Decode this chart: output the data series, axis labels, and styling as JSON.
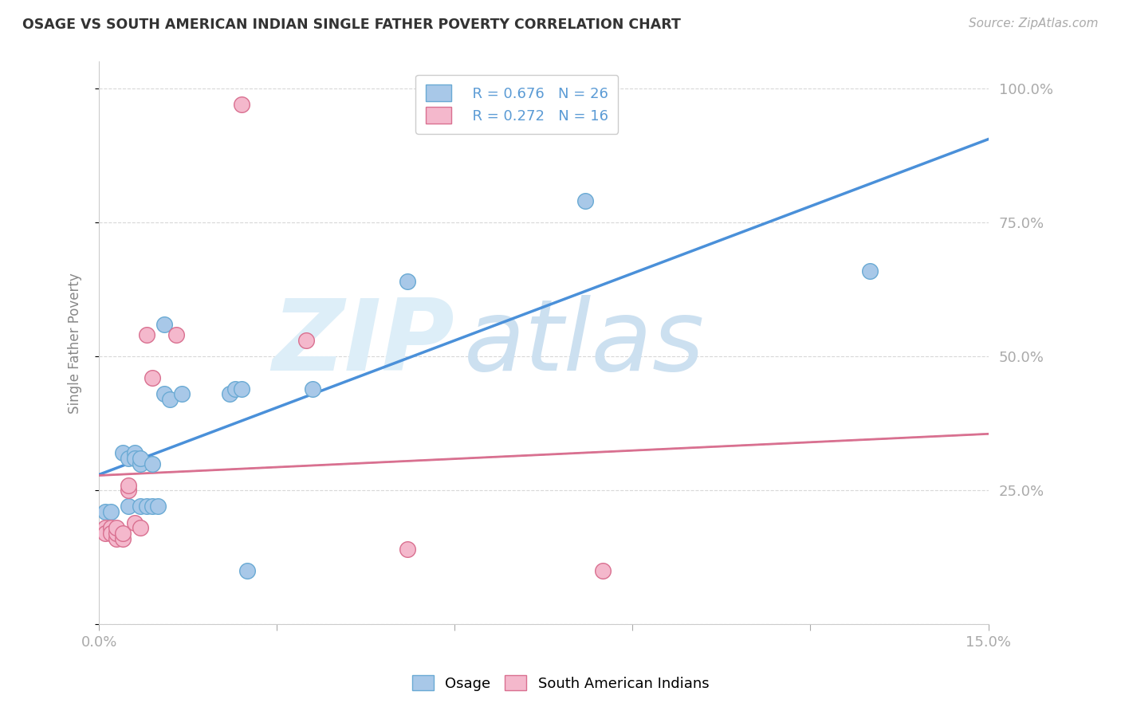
{
  "title": "OSAGE VS SOUTH AMERICAN INDIAN SINGLE FATHER POVERTY CORRELATION CHART",
  "source": "Source: ZipAtlas.com",
  "ylabel_label": "Single Father Poverty",
  "xlim": [
    0.0,
    0.15
  ],
  "ylim": [
    0.0,
    1.05
  ],
  "xticks": [
    0.0,
    0.03,
    0.06,
    0.09,
    0.12,
    0.15
  ],
  "xtick_labels": [
    "0.0%",
    "",
    "",
    "",
    "",
    "15.0%"
  ],
  "yticks": [
    0.0,
    0.25,
    0.5,
    0.75,
    1.0
  ],
  "ytick_labels": [
    "",
    "25.0%",
    "50.0%",
    "75.0%",
    "100.0%"
  ],
  "osage_color": "#a8c8e8",
  "osage_edge_color": "#6aaad4",
  "south_american_color": "#f4b8cc",
  "south_american_edge_color": "#d97090",
  "regression_osage_color": "#4a90d9",
  "regression_sa_color": "#d97090",
  "background_color": "#ffffff",
  "grid_color": "#d8d8d8",
  "text_color": "#5b9bd5",
  "title_color": "#333333",
  "axis_label_color": "#888888",
  "legend_text_color": "#333333",
  "osage_x": [
    0.001,
    0.002,
    0.004,
    0.005,
    0.005,
    0.006,
    0.006,
    0.007,
    0.007,
    0.007,
    0.008,
    0.009,
    0.009,
    0.01,
    0.011,
    0.011,
    0.012,
    0.014,
    0.022,
    0.023,
    0.024,
    0.025,
    0.036,
    0.052,
    0.082,
    0.13
  ],
  "osage_y": [
    0.21,
    0.21,
    0.32,
    0.31,
    0.22,
    0.32,
    0.31,
    0.3,
    0.31,
    0.22,
    0.22,
    0.3,
    0.22,
    0.22,
    0.43,
    0.56,
    0.42,
    0.43,
    0.43,
    0.44,
    0.44,
    0.1,
    0.44,
    0.64,
    0.79,
    0.66
  ],
  "sa_x": [
    0.001,
    0.001,
    0.002,
    0.002,
    0.003,
    0.003,
    0.003,
    0.004,
    0.004,
    0.005,
    0.005,
    0.006,
    0.007,
    0.008,
    0.009,
    0.013,
    0.024,
    0.035,
    0.052,
    0.085
  ],
  "sa_y": [
    0.18,
    0.17,
    0.18,
    0.17,
    0.16,
    0.17,
    0.18,
    0.16,
    0.17,
    0.25,
    0.26,
    0.19,
    0.18,
    0.54,
    0.46,
    0.54,
    0.97,
    0.53,
    0.14,
    0.1
  ],
  "watermark_zip_color": "#ddeef8",
  "watermark_atlas_color": "#cce0f0"
}
